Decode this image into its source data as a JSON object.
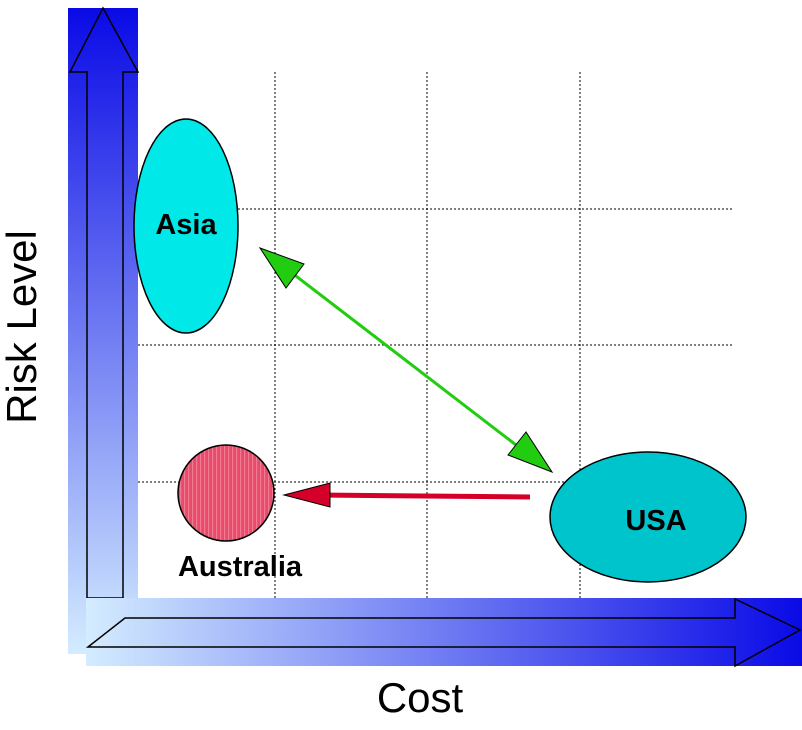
{
  "axes": {
    "y_label": "Risk Level",
    "x_label": "Cost"
  },
  "regions": {
    "asia": "Asia",
    "usa": "USA",
    "australia": "Australia"
  },
  "colors": {
    "axis_gradient_start": "#d4ecff",
    "axis_gradient_end": "#0a0ae6",
    "asia_fill": "#00e8e8",
    "usa_fill": "#00c4cc",
    "australia_fill": "#e84a6a",
    "green_arrow": "#22cc11",
    "red_arrow": "#d4002a",
    "grid": "#000000"
  }
}
